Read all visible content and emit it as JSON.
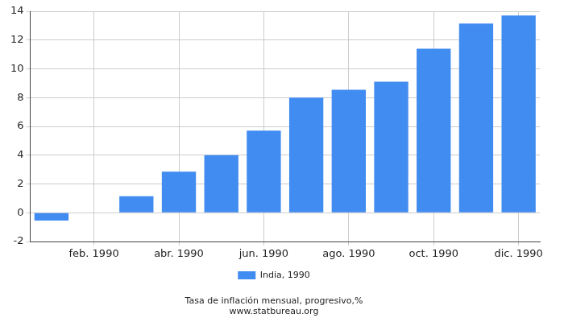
{
  "chart_data": {
    "type": "bar",
    "title": "Tasa de inflación mensual, progresivo,%",
    "subtitle": "www.statbureau.org",
    "categories": [
      null,
      "feb. 1990",
      null,
      "abr. 1990",
      null,
      "jun. 1990",
      null,
      "ago. 1990",
      null,
      "oct. 1990",
      null,
      "dic. 1990"
    ],
    "series": [
      {
        "name": "India, 1990",
        "color": "#418cf0",
        "values": [
          -0.55,
          0,
          1.15,
          2.85,
          4.0,
          5.7,
          8.0,
          8.55,
          9.1,
          11.4,
          13.15,
          13.7
        ]
      }
    ],
    "ylim": [
      -2,
      14
    ],
    "yticks": [
      -2,
      0,
      2,
      4,
      6,
      8,
      10,
      12,
      14
    ],
    "grid": true,
    "legend": "bottom"
  }
}
